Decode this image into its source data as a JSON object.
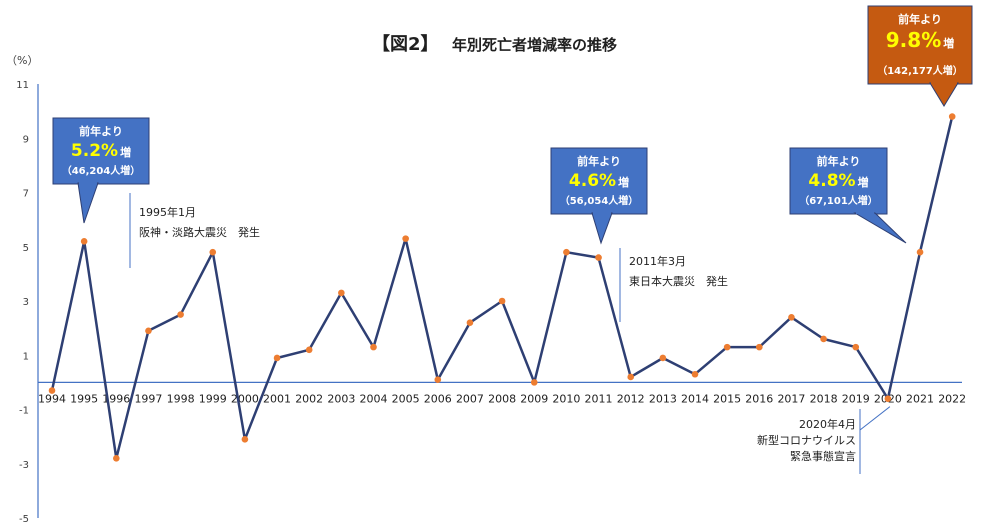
{
  "chart_data": {
    "type": "line",
    "title": {
      "tag": "【図2】",
      "text": "年別死亡者増減率の推移"
    },
    "ylabel": "（%）",
    "ylim": [
      -5,
      11
    ],
    "yticks": [
      "11",
      "9",
      "7",
      "5",
      "3",
      "1",
      "-1",
      "-3",
      "-5"
    ],
    "categories": [
      "1994",
      "1995",
      "1996",
      "1997",
      "1998",
      "1999",
      "2000",
      "2001",
      "2002",
      "2003",
      "2004",
      "2005",
      "2006",
      "2007",
      "2008",
      "2009",
      "2010",
      "2011",
      "2012",
      "2013",
      "2014",
      "2015",
      "2016",
      "2017",
      "2018",
      "2019",
      "2020",
      "2021",
      "2022"
    ],
    "values": [
      -0.3,
      5.2,
      -2.8,
      1.9,
      2.5,
      4.8,
      -2.1,
      0.9,
      1.2,
      3.3,
      1.3,
      5.3,
      0.1,
      2.2,
      3.0,
      0.0,
      4.8,
      4.6,
      0.2,
      0.9,
      0.3,
      1.3,
      1.3,
      2.4,
      1.6,
      1.3,
      -0.6,
      4.8,
      9.8
    ],
    "series_color": "#2e3f73",
    "marker_color": "#ed7d31",
    "axis_color": "#4472c4",
    "grid": false,
    "callouts": [
      {
        "id": "1995",
        "line1": "前年より",
        "pct": "5.2%",
        "suffix": "増",
        "line3": "（46,204人増）",
        "color": "#4472c4",
        "pct_color": "#ffff00"
      },
      {
        "id": "2011",
        "line1": "前年より",
        "pct": "4.6%",
        "suffix": "増",
        "line3": "（56,054人増）",
        "color": "#4472c4",
        "pct_color": "#ffff00"
      },
      {
        "id": "2021",
        "line1": "前年より",
        "pct": "4.8%",
        "suffix": "増",
        "line3": "（67,101人増）",
        "color": "#4472c4",
        "pct_color": "#ffff00"
      },
      {
        "id": "2022",
        "line1": "前年より",
        "pct": "9.8%",
        "suffix": "増",
        "line3": "（142,177人増）",
        "color": "#c55a11",
        "pct_color": "#ffff00"
      }
    ],
    "annotations": [
      {
        "id": "1995",
        "lines": [
          "1995年1月",
          "阪神・淡路大震災　発生"
        ]
      },
      {
        "id": "2011",
        "lines": [
          "2011年3月",
          "東日本大震災　発生"
        ]
      },
      {
        "id": "2020",
        "lines": [
          "2020年4月",
          "新型コロナウイルス",
          "緊急事態宣言"
        ]
      }
    ]
  }
}
